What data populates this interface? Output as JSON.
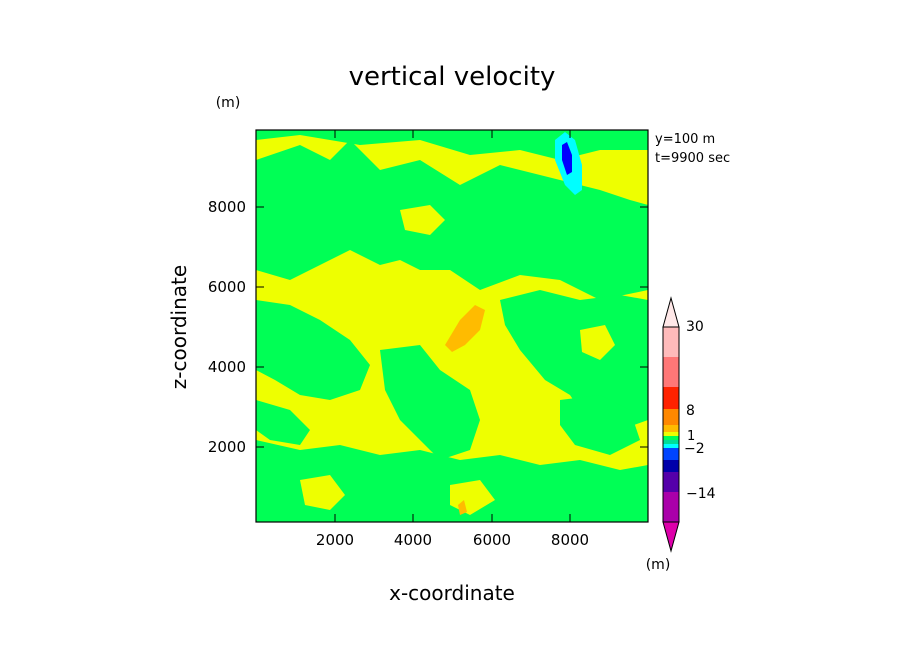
{
  "chart_data": {
    "type": "heatmap",
    "title": "vertical velocity",
    "xlabel": "x-coordinate",
    "ylabel": "z-coordinate",
    "y_unit": "(m)",
    "annotation_y": "y=100 m",
    "annotation_t": "t=9900 sec",
    "colorbar_unit": "(m)",
    "xlim": [
      0,
      10000
    ],
    "ylim": [
      0,
      10000
    ],
    "xticks": [
      "2000",
      "4000",
      "6000",
      "8000"
    ],
    "yticks": [
      "2000",
      "4000",
      "6000",
      "8000"
    ],
    "colorbar_labels": [
      "30",
      "8",
      "1",
      "−2",
      "−14"
    ],
    "colors": {
      "yellow": "#eeff00",
      "green": "#00ff55",
      "orange": "#ffbb00",
      "cyan": "#00ffff",
      "blue": "#0000ff"
    },
    "regions": [
      {
        "level": "green",
        "value_range": "-1 to 0",
        "extent": "large areas, top band at z 6000-9800"
      },
      {
        "level": "yellow",
        "value_range": "0 to 1",
        "extent": "background"
      },
      {
        "level": "orange",
        "value_range": "1 to 2",
        "center": [
          5200,
          4800
        ]
      },
      {
        "level": "cyan",
        "value_range": "-2 to -1",
        "center": [
          7900,
          9000
        ]
      },
      {
        "level": "blue",
        "value_range": "below -2",
        "center": [
          7800,
          9100
        ]
      }
    ]
  }
}
